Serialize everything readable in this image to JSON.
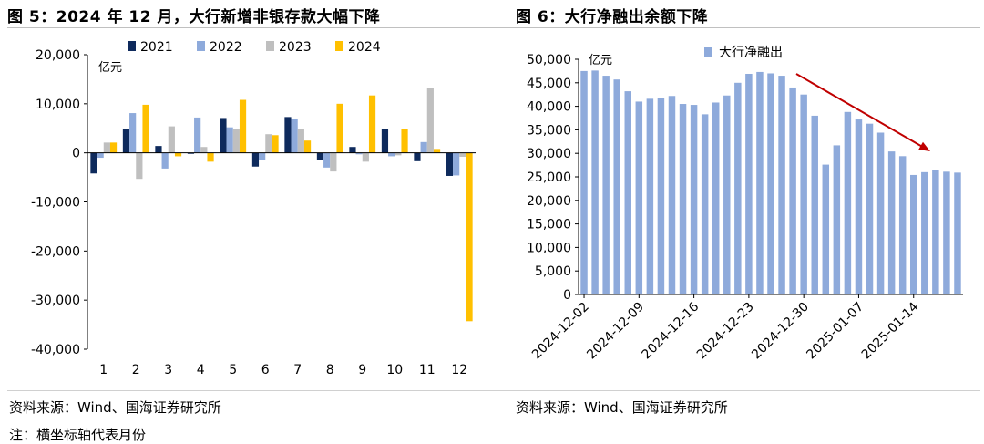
{
  "fig5": {
    "title": "图 5：2024 年 12 月，大行新增非银存款大幅下降",
    "source": "资料来源：Wind、国海证券研究所",
    "note": "注：横坐标轴代表月份"
  },
  "fig6": {
    "title": "图 6：大行净融出余额下降",
    "source": "资料来源：Wind、国海证券研究所"
  },
  "chart_data": [
    {
      "type": "bar",
      "unit_label": "亿元",
      "categories": [
        "1",
        "2",
        "3",
        "4",
        "5",
        "6",
        "7",
        "8",
        "9",
        "10",
        "11",
        "12"
      ],
      "ylim": [
        -40000,
        20000
      ],
      "yticks": [
        20000,
        10000,
        0,
        -10000,
        -20000,
        -30000,
        -40000
      ],
      "ytick_labels": [
        "20,000",
        "10,000",
        "0",
        "-10,000",
        "-20,000",
        "-30,000",
        "-40,000"
      ],
      "legend_position": "top",
      "series": [
        {
          "name": "2021",
          "color": "#0e2a5c",
          "values": [
            -4200,
            4900,
            1400,
            -200,
            7100,
            -2800,
            7300,
            -1400,
            1200,
            4900,
            -1700,
            -4700
          ]
        },
        {
          "name": "2022",
          "color": "#8eaadb",
          "values": [
            -1000,
            8100,
            -3200,
            7200,
            5200,
            -1400,
            7000,
            -3000,
            -300,
            -700,
            2200,
            -4600
          ]
        },
        {
          "name": "2023",
          "color": "#bfbfbf",
          "values": [
            2100,
            -5300,
            5400,
            1200,
            4800,
            3800,
            4900,
            -3800,
            -1800,
            -500,
            13300,
            -800
          ]
        },
        {
          "name": "2024",
          "color": "#ffc000",
          "values": [
            2100,
            9800,
            -700,
            -1800,
            10800,
            3600,
            2500,
            10000,
            11700,
            4800,
            800,
            -34300
          ]
        }
      ]
    },
    {
      "type": "bar",
      "unit_label": "亿元",
      "legend": [
        "大行净融出"
      ],
      "color": "#8eaadb",
      "ylim": [
        0,
        50000
      ],
      "yticks": [
        50000,
        45000,
        40000,
        35000,
        30000,
        25000,
        20000,
        15000,
        10000,
        5000,
        0
      ],
      "ytick_labels": [
        "50,000",
        "45,000",
        "40,000",
        "35,000",
        "30,000",
        "25,000",
        "20,000",
        "15,000",
        "10,000",
        "5,000",
        "0"
      ],
      "xtick_labels": [
        "2024-12-02",
        "2024-12-09",
        "2024-12-16",
        "2024-12-23",
        "2024-12-30",
        "2025-01-07",
        "2025-01-14"
      ],
      "xtick_indices": [
        0,
        5,
        10,
        15,
        20,
        25,
        30
      ],
      "values": [
        47500,
        47600,
        46500,
        45700,
        43200,
        41000,
        41600,
        41700,
        42200,
        40500,
        40300,
        38300,
        40800,
        42300,
        45000,
        46900,
        47300,
        47000,
        46500,
        44000,
        42500,
        38000,
        27600,
        31700,
        38800,
        37200,
        36300,
        34400,
        30400,
        29400,
        25400,
        26000,
        26500,
        26100,
        25900
      ],
      "trend_arrow_color": "#c00000"
    }
  ]
}
